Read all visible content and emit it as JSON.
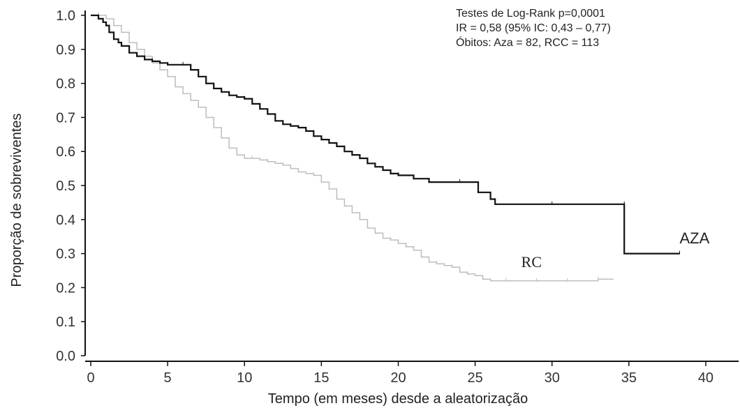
{
  "chart_data": {
    "type": "line",
    "title": "",
    "xlabel": "Tempo (em meses) desde a aleatorização",
    "ylabel": "Proporção de sobreviventes",
    "xlim": [
      0,
      42
    ],
    "ylim": [
      0,
      1.0
    ],
    "x_ticks": [
      "0",
      "5",
      "10",
      "15",
      "20",
      "25",
      "30",
      "35",
      "40"
    ],
    "y_ticks": [
      "0.0",
      "0.1",
      "0.2",
      "0.3",
      "0.4",
      "0.5",
      "0.6",
      "0.7",
      "0.8",
      "0.9",
      "1.0"
    ],
    "grid": false,
    "annotations": [
      "Testes de Log-Rank p=0,0001",
      "IR = 0,58 (95% IC: 0,43 – 0,77)",
      "Óbitos: Aza = 82, RCC = 113"
    ],
    "series": [
      {
        "name": "AZA",
        "color": "#111111",
        "x": [
          0,
          0.5,
          0.8,
          1.0,
          1.2,
          1.5,
          1.8,
          2.0,
          2.5,
          3.0,
          3.5,
          4.0,
          4.5,
          5.0,
          5.5,
          6.0,
          6.5,
          7.0,
          7.5,
          8.0,
          8.5,
          9.0,
          9.5,
          10.0,
          10.5,
          11.0,
          11.5,
          12.0,
          12.5,
          13.0,
          13.5,
          14.0,
          14.5,
          15.0,
          15.5,
          16.0,
          16.5,
          17.0,
          17.5,
          18.0,
          18.5,
          19.0,
          19.5,
          20.0,
          20.5,
          21.0,
          21.5,
          22.0,
          23.0,
          24.0,
          25.0,
          25.2,
          26.0,
          26.3,
          28.0,
          30.0,
          32.0,
          34.7,
          34.7,
          38.3
        ],
        "y": [
          1.0,
          0.99,
          0.98,
          0.97,
          0.95,
          0.93,
          0.92,
          0.91,
          0.89,
          0.88,
          0.87,
          0.865,
          0.86,
          0.855,
          0.855,
          0.855,
          0.84,
          0.82,
          0.8,
          0.785,
          0.775,
          0.765,
          0.76,
          0.755,
          0.74,
          0.725,
          0.71,
          0.69,
          0.68,
          0.675,
          0.67,
          0.66,
          0.645,
          0.635,
          0.625,
          0.615,
          0.6,
          0.59,
          0.58,
          0.565,
          0.555,
          0.545,
          0.535,
          0.53,
          0.53,
          0.52,
          0.52,
          0.51,
          0.51,
          0.51,
          0.51,
          0.48,
          0.46,
          0.445,
          0.445,
          0.445,
          0.445,
          0.445,
          0.3,
          0.3
        ]
      },
      {
        "name": "RC",
        "color": "#bdbdbd",
        "x": [
          0,
          0.5,
          1.0,
          1.5,
          2.0,
          2.5,
          3.0,
          3.5,
          4.0,
          4.5,
          5.0,
          5.5,
          6.0,
          6.5,
          7.0,
          7.5,
          8.0,
          8.5,
          9.0,
          9.5,
          10.0,
          10.5,
          11.0,
          11.5,
          12.0,
          12.5,
          13.0,
          13.5,
          14.0,
          14.5,
          15.0,
          15.5,
          16.0,
          16.5,
          17.0,
          17.5,
          18.0,
          18.5,
          19.0,
          19.5,
          20.0,
          20.5,
          21.0,
          21.5,
          22.0,
          22.5,
          23.0,
          23.5,
          24.0,
          24.5,
          25.0,
          25.5,
          26.0,
          27.0,
          28.0,
          29.0,
          30.0,
          31.0,
          32.0,
          33.0,
          34.0
        ],
        "y": [
          1.0,
          1.0,
          0.99,
          0.97,
          0.95,
          0.92,
          0.9,
          0.88,
          0.86,
          0.84,
          0.82,
          0.79,
          0.77,
          0.75,
          0.73,
          0.7,
          0.67,
          0.64,
          0.61,
          0.59,
          0.58,
          0.58,
          0.575,
          0.57,
          0.565,
          0.56,
          0.55,
          0.54,
          0.535,
          0.53,
          0.51,
          0.49,
          0.46,
          0.44,
          0.42,
          0.4,
          0.375,
          0.36,
          0.345,
          0.34,
          0.33,
          0.32,
          0.31,
          0.29,
          0.275,
          0.27,
          0.265,
          0.26,
          0.245,
          0.24,
          0.235,
          0.225,
          0.22,
          0.22,
          0.22,
          0.22,
          0.22,
          0.22,
          0.22,
          0.225,
          0.225
        ]
      }
    ],
    "series_labels": [
      {
        "text": "AZA",
        "x": 38.3,
        "y": 0.33
      },
      {
        "text": "RC",
        "x": 28.0,
        "y": 0.26
      }
    ]
  }
}
